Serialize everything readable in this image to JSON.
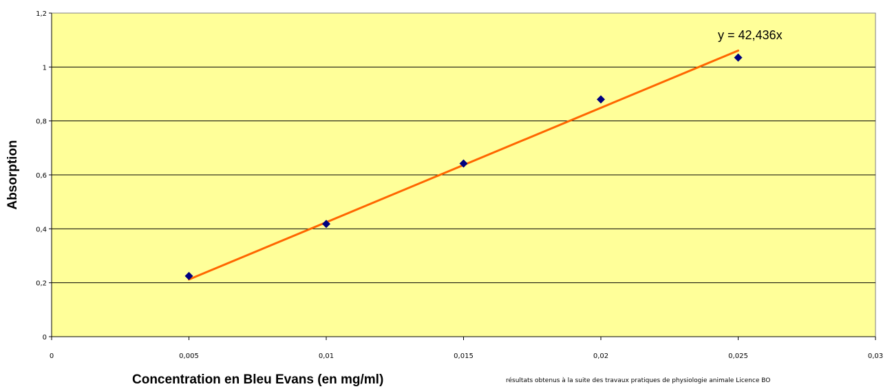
{
  "chart_data": {
    "type": "scatter",
    "xlabel": "Concentration en Bleu Evans (en mg/ml)",
    "ylabel": "Absorption",
    "xlim": [
      0,
      0.03
    ],
    "ylim": [
      0,
      1.2
    ],
    "x_ticks": [
      "0",
      "0,005",
      "0,01",
      "0,015",
      "0,02",
      "0,025",
      "0,03"
    ],
    "y_ticks": [
      "0",
      "0,2",
      "0,4",
      "0,6",
      "0,8",
      "1",
      "1,2"
    ],
    "y_tick_values": [
      0,
      0.2,
      0.4,
      0.6,
      0.8,
      1.0,
      1.2
    ],
    "x_tick_values": [
      0,
      0.005,
      0.01,
      0.015,
      0.02,
      0.025,
      0.03
    ],
    "series": [
      {
        "x": [
          0.005,
          0.01,
          0.015,
          0.02,
          0.025
        ],
        "y": [
          0.225,
          0.418,
          0.642,
          0.88,
          1.035
        ]
      }
    ],
    "trendline": {
      "slope": 42.436,
      "x_range": [
        0.005,
        0.025
      ],
      "label": "y = 42,436x"
    },
    "grid": "horizontal",
    "legend": "none"
  },
  "footnote": "résultats obtenus à la suite des travaux pratiques de physiologie animale Licence BO",
  "colors": {
    "plot_background": "#ffff99",
    "marker": "#000080",
    "trendline": "#ff6600",
    "gridline": "#000000"
  }
}
